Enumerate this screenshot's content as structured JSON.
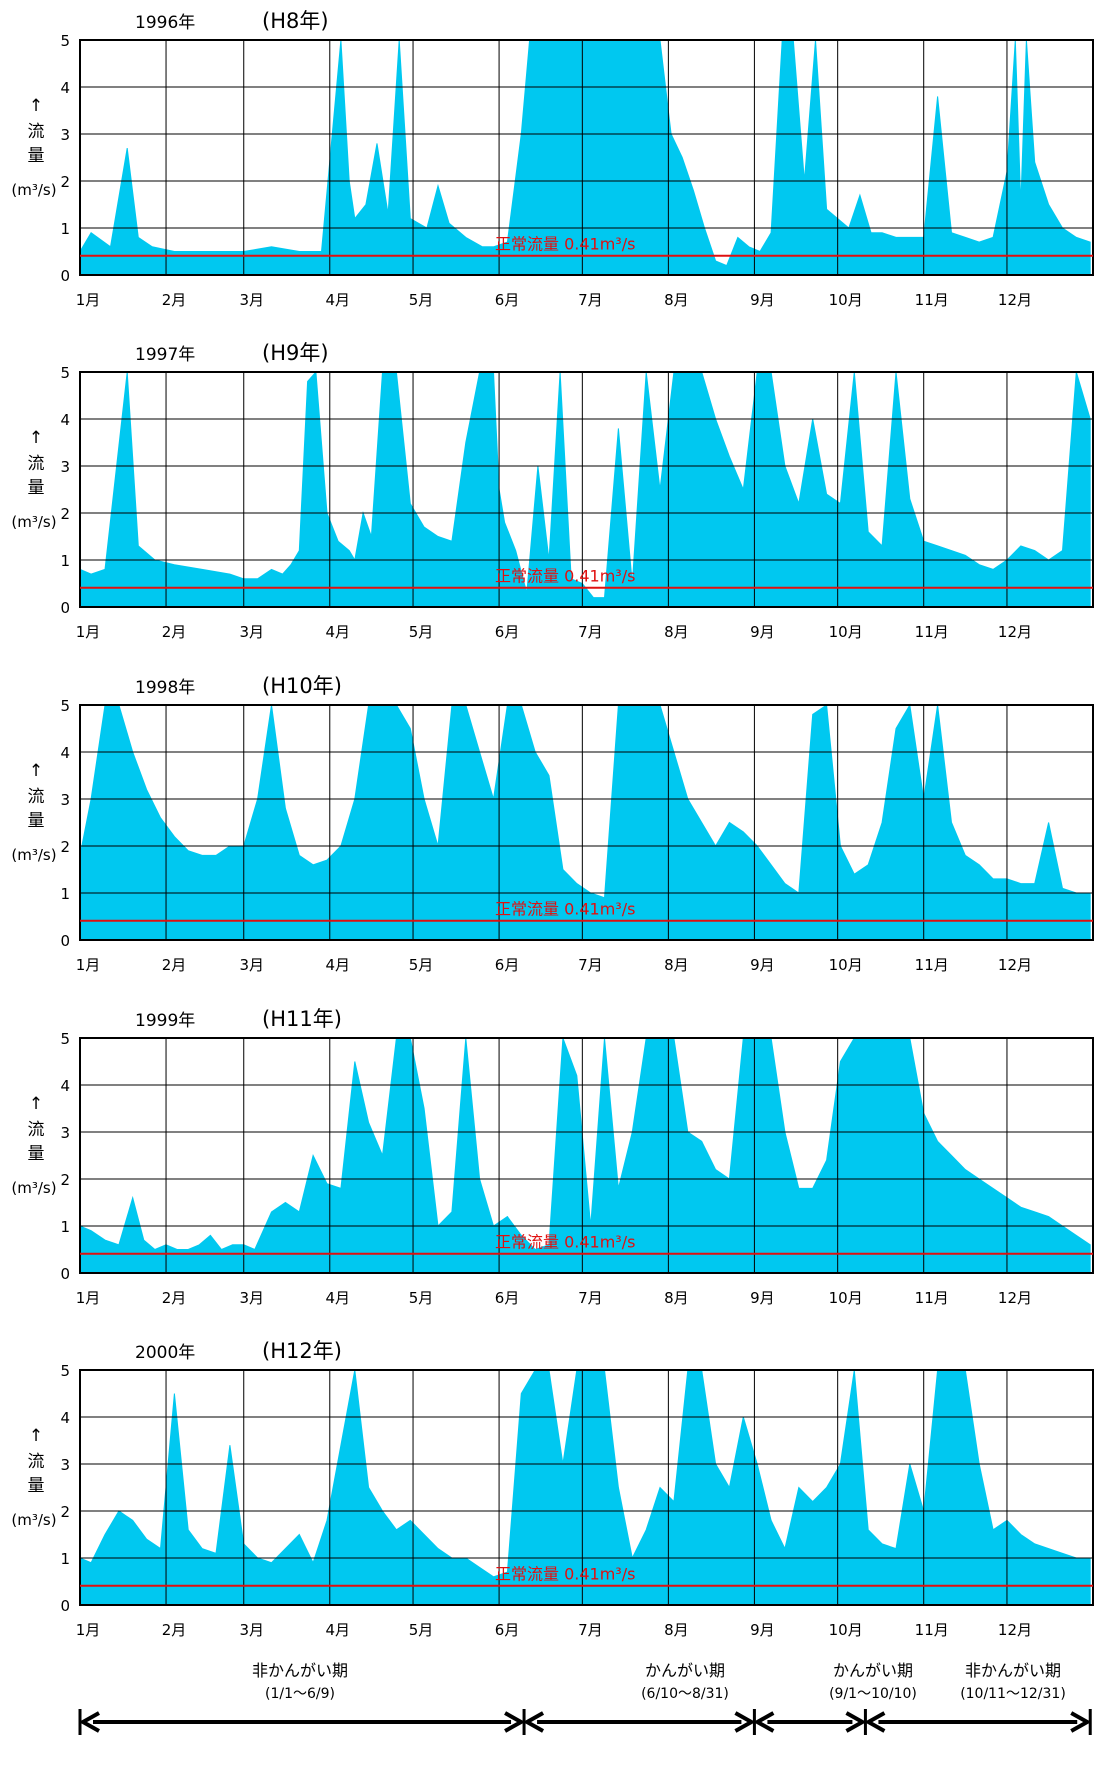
{
  "colors": {
    "flow": "#00c8f0",
    "normal_line": "#e01010",
    "grid": "#000000"
  },
  "months": [
    "1月",
    "2月",
    "3月",
    "4月",
    "5月",
    "6月",
    "7月",
    "8月",
    "9月",
    "10月",
    "11月",
    "12月"
  ],
  "y_axis": {
    "ticks": [
      "0",
      "1",
      "2",
      "3",
      "4",
      "5"
    ],
    "arrow": "↑",
    "label_chars": [
      "流",
      "量"
    ],
    "unit": "(m³/s)"
  },
  "normal_flow_label": "正常流量 0.41m³/s",
  "chart_data": [
    {
      "type": "area",
      "year_label": "1996年",
      "era_label": "(H8年)",
      "ylim": [
        0,
        5
      ],
      "normal_flow": 0.41,
      "x_days": [
        1,
        5,
        12,
        18,
        22,
        27,
        35,
        45,
        60,
        70,
        80,
        88,
        95,
        98,
        100,
        104,
        108,
        112,
        116,
        120,
        126,
        130,
        134,
        140,
        146,
        150,
        155,
        160,
        163,
        167,
        170,
        173,
        177,
        180,
        185,
        190,
        195,
        200,
        205,
        210,
        214,
        218,
        222,
        226,
        230,
        234,
        238,
        242,
        246,
        250,
        254,
        258,
        262,
        266,
        270,
        274,
        278,
        282,
        286,
        290,
        295,
        300,
        305,
        310,
        315,
        320,
        325,
        330,
        335,
        338,
        340,
        342,
        345,
        350,
        355,
        360,
        365
      ],
      "flow": [
        0.5,
        0.9,
        0.6,
        2.7,
        0.8,
        0.6,
        0.5,
        0.5,
        0.5,
        0.6,
        0.5,
        0.5,
        5.0,
        2.0,
        1.2,
        1.5,
        2.8,
        1.3,
        5.0,
        1.2,
        1.0,
        1.9,
        1.1,
        0.8,
        0.6,
        0.6,
        0.7,
        3.0,
        5.0,
        5.0,
        5.0,
        5.0,
        5.0,
        5.0,
        5.0,
        5.0,
        5.0,
        5.0,
        5.0,
        5.0,
        3.0,
        2.5,
        1.8,
        1.0,
        0.3,
        0.2,
        0.8,
        0.6,
        0.5,
        0.9,
        5.0,
        5.0,
        2.0,
        5.0,
        1.4,
        1.2,
        1.0,
        1.7,
        0.9,
        0.9,
        0.8,
        0.8,
        0.8,
        3.8,
        0.9,
        0.8,
        0.7,
        0.8,
        2.2,
        5.0,
        1.5,
        5.0,
        2.4,
        1.5,
        1.0,
        0.8,
        0.7
      ]
    },
    {
      "type": "area",
      "year_label": "1997年",
      "era_label": "(H9年)",
      "ylim": [
        0,
        5
      ],
      "normal_flow": 0.41,
      "x_days": [
        1,
        5,
        10,
        18,
        22,
        28,
        35,
        45,
        55,
        60,
        65,
        70,
        74,
        77,
        80,
        83,
        86,
        90,
        94,
        98,
        100,
        103,
        106,
        110,
        115,
        120,
        125,
        130,
        135,
        140,
        145,
        150,
        152,
        154,
        158,
        162,
        166,
        170,
        174,
        178,
        182,
        186,
        190,
        195,
        200,
        205,
        210,
        215,
        220,
        225,
        230,
        235,
        240,
        245,
        250,
        255,
        260,
        265,
        270,
        275,
        280,
        285,
        290,
        295,
        300,
        305,
        310,
        315,
        320,
        325,
        330,
        335,
        340,
        345,
        350,
        355,
        360,
        365
      ],
      "flow": [
        0.8,
        0.7,
        0.8,
        5.0,
        1.3,
        1.0,
        0.9,
        0.8,
        0.7,
        0.6,
        0.6,
        0.8,
        0.7,
        0.9,
        1.2,
        4.8,
        5.0,
        2.0,
        1.4,
        1.2,
        1.0,
        2.0,
        1.5,
        5.0,
        5.0,
        2.2,
        1.7,
        1.5,
        1.4,
        3.5,
        5.0,
        5.0,
        2.5,
        1.8,
        1.2,
        0.3,
        3.0,
        1.0,
        5.0,
        0.6,
        0.5,
        0.2,
        0.2,
        3.8,
        0.5,
        5.0,
        2.5,
        5.0,
        5.0,
        5.0,
        4.0,
        3.2,
        2.5,
        5.0,
        5.0,
        3.0,
        2.2,
        4.0,
        2.4,
        2.2,
        5.0,
        1.6,
        1.3,
        5.0,
        2.3,
        1.4,
        1.3,
        1.2,
        1.1,
        0.9,
        0.8,
        1.0,
        1.3,
        1.2,
        1.0,
        1.2,
        5.0,
        4.0
      ]
    },
    {
      "type": "area",
      "year_label": "1998年",
      "era_label": "(H10年)",
      "ylim": [
        0,
        5
      ],
      "normal_flow": 0.41,
      "x_days": [
        1,
        5,
        10,
        15,
        20,
        25,
        30,
        35,
        40,
        45,
        50,
        55,
        60,
        65,
        70,
        75,
        80,
        85,
        90,
        95,
        100,
        105,
        110,
        115,
        120,
        125,
        130,
        135,
        140,
        145,
        150,
        155,
        160,
        165,
        170,
        175,
        180,
        185,
        190,
        195,
        200,
        205,
        210,
        215,
        220,
        225,
        230,
        235,
        240,
        245,
        250,
        255,
        260,
        265,
        270,
        275,
        280,
        285,
        290,
        295,
        300,
        305,
        310,
        315,
        320,
        325,
        330,
        335,
        340,
        345,
        350,
        355,
        360,
        365
      ],
      "flow": [
        1.8,
        3.0,
        5.0,
        5.0,
        4.0,
        3.2,
        2.6,
        2.2,
        1.9,
        1.8,
        1.8,
        2.0,
        2.0,
        3.0,
        5.0,
        2.8,
        1.8,
        1.6,
        1.7,
        2.0,
        3.0,
        5.0,
        5.0,
        5.0,
        4.5,
        3.0,
        2.0,
        5.0,
        5.0,
        4.0,
        3.0,
        5.0,
        5.0,
        4.0,
        3.5,
        1.5,
        1.2,
        1.0,
        0.9,
        5.0,
        5.0,
        5.0,
        5.0,
        4.0,
        3.0,
        2.5,
        2.0,
        2.5,
        2.3,
        2.0,
        1.6,
        1.2,
        1.0,
        4.8,
        5.0,
        2.0,
        1.4,
        1.6,
        2.5,
        4.5,
        5.0,
        3.0,
        5.0,
        2.5,
        1.8,
        1.6,
        1.3,
        1.3,
        1.2,
        1.2,
        2.5,
        1.1,
        1.0,
        1.0
      ]
    },
    {
      "type": "area",
      "year_label": "1999年",
      "era_label": "(H11年)",
      "ylim": [
        0,
        5
      ],
      "normal_flow": 0.41,
      "x_days": [
        1,
        5,
        10,
        15,
        20,
        24,
        28,
        32,
        36,
        40,
        44,
        48,
        52,
        56,
        60,
        64,
        70,
        75,
        80,
        85,
        90,
        95,
        100,
        105,
        110,
        115,
        120,
        125,
        130,
        135,
        140,
        145,
        150,
        155,
        160,
        165,
        170,
        175,
        180,
        185,
        190,
        195,
        200,
        205,
        210,
        215,
        220,
        225,
        230,
        235,
        240,
        245,
        250,
        255,
        260,
        265,
        270,
        275,
        280,
        285,
        290,
        295,
        300,
        305,
        310,
        315,
        320,
        325,
        330,
        335,
        340,
        345,
        350,
        355,
        360,
        365
      ],
      "flow": [
        1.0,
        0.9,
        0.7,
        0.6,
        1.6,
        0.7,
        0.5,
        0.6,
        0.5,
        0.5,
        0.6,
        0.8,
        0.5,
        0.6,
        0.6,
        0.5,
        1.3,
        1.5,
        1.3,
        2.5,
        1.9,
        1.8,
        4.5,
        3.2,
        2.5,
        5.0,
        5.0,
        3.5,
        1.0,
        1.3,
        5.0,
        2.0,
        1.0,
        1.2,
        0.8,
        0.5,
        0.6,
        5.0,
        4.2,
        1.0,
        5.0,
        1.8,
        3.0,
        5.0,
        5.0,
        5.0,
        3.0,
        2.8,
        2.2,
        2.0,
        5.0,
        5.0,
        5.0,
        3.0,
        1.8,
        1.8,
        2.4,
        4.5,
        5.0,
        5.0,
        5.0,
        5.0,
        5.0,
        3.4,
        2.8,
        2.5,
        2.2,
        2.0,
        1.8,
        1.6,
        1.4,
        1.3,
        1.2,
        1.0,
        0.8,
        0.6
      ]
    },
    {
      "type": "area",
      "year_label": "2000年",
      "era_label": "(H12年)",
      "ylim": [
        0,
        5
      ],
      "normal_flow": 0.41,
      "x_days": [
        1,
        5,
        10,
        15,
        20,
        25,
        30,
        35,
        40,
        45,
        50,
        55,
        60,
        65,
        70,
        75,
        80,
        85,
        90,
        95,
        100,
        105,
        110,
        115,
        120,
        125,
        130,
        135,
        140,
        145,
        150,
        155,
        160,
        165,
        170,
        175,
        180,
        185,
        190,
        195,
        200,
        205,
        210,
        215,
        220,
        225,
        230,
        235,
        240,
        245,
        250,
        255,
        260,
        265,
        270,
        275,
        280,
        285,
        290,
        295,
        300,
        305,
        310,
        315,
        320,
        325,
        330,
        335,
        340,
        345,
        350,
        355,
        360,
        365
      ],
      "flow": [
        1.0,
        0.9,
        1.5,
        2.0,
        1.8,
        1.4,
        1.2,
        4.5,
        1.6,
        1.2,
        1.1,
        3.4,
        1.3,
        1.0,
        0.9,
        1.2,
        1.5,
        0.9,
        1.8,
        3.4,
        5.0,
        2.5,
        2.0,
        1.6,
        1.8,
        1.5,
        1.2,
        1.0,
        1.0,
        0.8,
        0.6,
        0.7,
        4.5,
        5.0,
        5.0,
        3.0,
        5.0,
        5.0,
        5.0,
        2.5,
        1.0,
        1.6,
        2.5,
        2.2,
        5.0,
        5.0,
        3.0,
        2.5,
        4.0,
        3.0,
        1.8,
        1.2,
        2.5,
        2.2,
        2.5,
        3.0,
        5.0,
        1.6,
        1.3,
        1.2,
        3.0,
        2.0,
        5.0,
        5.0,
        5.0,
        3.0,
        1.6,
        1.8,
        1.5,
        1.3,
        1.2,
        1.1,
        1.0,
        1.0
      ]
    }
  ],
  "periods": [
    {
      "label": "非かんがい期",
      "range": "(1/1〜6/9)"
    },
    {
      "label": "かんがい期",
      "range": "(6/10〜8/31)"
    },
    {
      "label": "かんがい期",
      "range": "(9/1〜10/10)"
    },
    {
      "label": "非かんがい期",
      "range": "(10/11〜12/31)"
    }
  ]
}
